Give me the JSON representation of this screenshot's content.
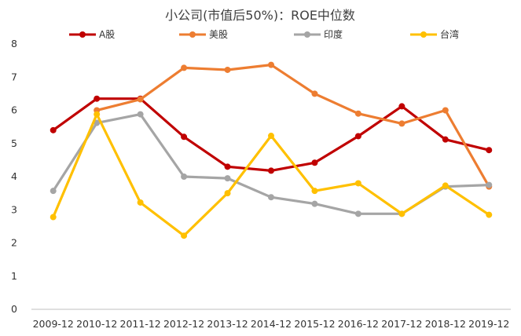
{
  "chart_data": {
    "type": "line",
    "title": "小公司(市值后50%)：ROE中位数",
    "xlabel": "",
    "ylabel": "",
    "categories": [
      "2009-12",
      "2010-12",
      "2011-12",
      "2012-12",
      "2013-12",
      "2014-12",
      "2015-12",
      "2016-12",
      "2017-12",
      "2018-12",
      "2019-12"
    ],
    "ylim": [
      0,
      8
    ],
    "yticks": [
      0,
      1,
      2,
      3,
      4,
      5,
      6,
      7,
      8
    ],
    "grid": false,
    "legend_position": "top",
    "series": [
      {
        "name": "A股",
        "color": "#c00000",
        "values": [
          5.4,
          6.35,
          6.35,
          5.2,
          4.3,
          4.18,
          4.42,
          5.22,
          6.12,
          5.12,
          4.8
        ]
      },
      {
        "name": "美股",
        "color": "#ed7d31",
        "values": [
          null,
          6.0,
          6.33,
          7.28,
          7.22,
          7.37,
          6.5,
          5.9,
          5.6,
          6.0,
          3.7
        ]
      },
      {
        "name": "印度",
        "color": "#a5a5a5",
        "values": [
          3.57,
          5.62,
          5.88,
          4.0,
          3.95,
          3.38,
          3.18,
          2.88,
          2.88,
          3.7,
          3.75
        ]
      },
      {
        "name": "台湾",
        "color": "#ffc000",
        "values": [
          2.78,
          5.88,
          3.22,
          2.22,
          3.5,
          5.23,
          3.57,
          3.8,
          2.88,
          3.73,
          2.85
        ]
      }
    ]
  }
}
